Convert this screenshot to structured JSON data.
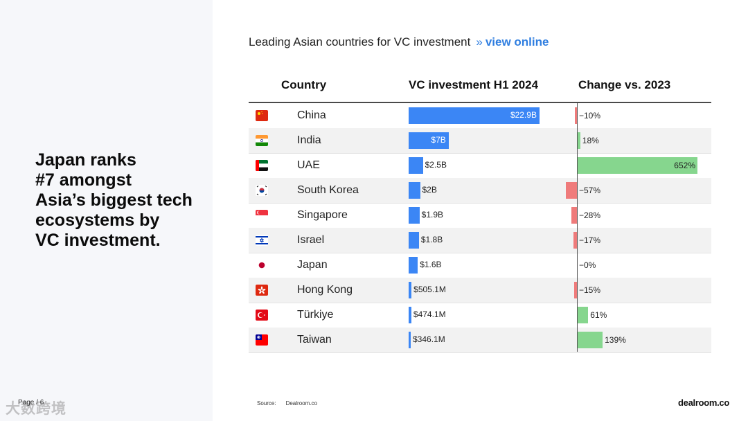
{
  "headline": [
    "Japan ranks",
    "#7 amongst",
    "Asia’s biggest tech",
    "ecosystems by",
    "VC investment."
  ],
  "page_label": "Page / 6",
  "watermark": "大数跨境",
  "title": {
    "text": "Leading Asian countries for VC investment",
    "separator": "»",
    "link": "view online"
  },
  "columns": {
    "country": "Country",
    "investment": "VC investment H1 2024",
    "change": "Change vs. 2023"
  },
  "colors": {
    "investment_bar": "#3b86f5",
    "negative_change": "#ef7b7b",
    "positive_change": "#86d68e"
  },
  "chart_data": {
    "type": "table",
    "columns": [
      "Country",
      "VC investment H1 2024",
      "Change vs. 2023"
    ],
    "rows": [
      {
        "flag": "china-flag-icon",
        "country": "China",
        "investment": 22.9,
        "investment_label": "$22.9B",
        "change": -10,
        "change_label": "−10%"
      },
      {
        "flag": "india-flag-icon",
        "country": "India",
        "investment": 7,
        "investment_label": "$7B",
        "change": 18,
        "change_label": "18%"
      },
      {
        "flag": "uae-flag-icon",
        "country": "UAE",
        "investment": 2.5,
        "investment_label": "$2.5B",
        "change": 652,
        "change_label": "652%"
      },
      {
        "flag": "south-korea-flag-icon",
        "country": "South Korea",
        "investment": 2,
        "investment_label": "$2B",
        "change": -57,
        "change_label": "−57%"
      },
      {
        "flag": "singapore-flag-icon",
        "country": "Singapore",
        "investment": 1.9,
        "investment_label": "$1.9B",
        "change": -28,
        "change_label": "−28%"
      },
      {
        "flag": "israel-flag-icon",
        "country": "Israel",
        "investment": 1.8,
        "investment_label": "$1.8B",
        "change": -17,
        "change_label": "−17%"
      },
      {
        "flag": "japan-flag-icon",
        "country": "Japan",
        "investment": 1.6,
        "investment_label": "$1.6B",
        "change": 0,
        "change_label": "−0%"
      },
      {
        "flag": "hong-kong-flag-icon",
        "country": "Hong Kong",
        "investment": 0.5051,
        "investment_label": "$505.1M",
        "change": -15,
        "change_label": "−15%"
      },
      {
        "flag": "turkiye-flag-icon",
        "country": "Türkiye",
        "investment": 0.4741,
        "investment_label": "$474.1M",
        "change": 61,
        "change_label": "61%"
      },
      {
        "flag": "taiwan-flag-icon",
        "country": "Taiwan",
        "investment": 0.3461,
        "investment_label": "$346.1M",
        "change": 139,
        "change_label": "139%"
      }
    ]
  },
  "source": {
    "label": "Source:",
    "value": "Dealroom.co"
  },
  "brand": "dealroom.co"
}
